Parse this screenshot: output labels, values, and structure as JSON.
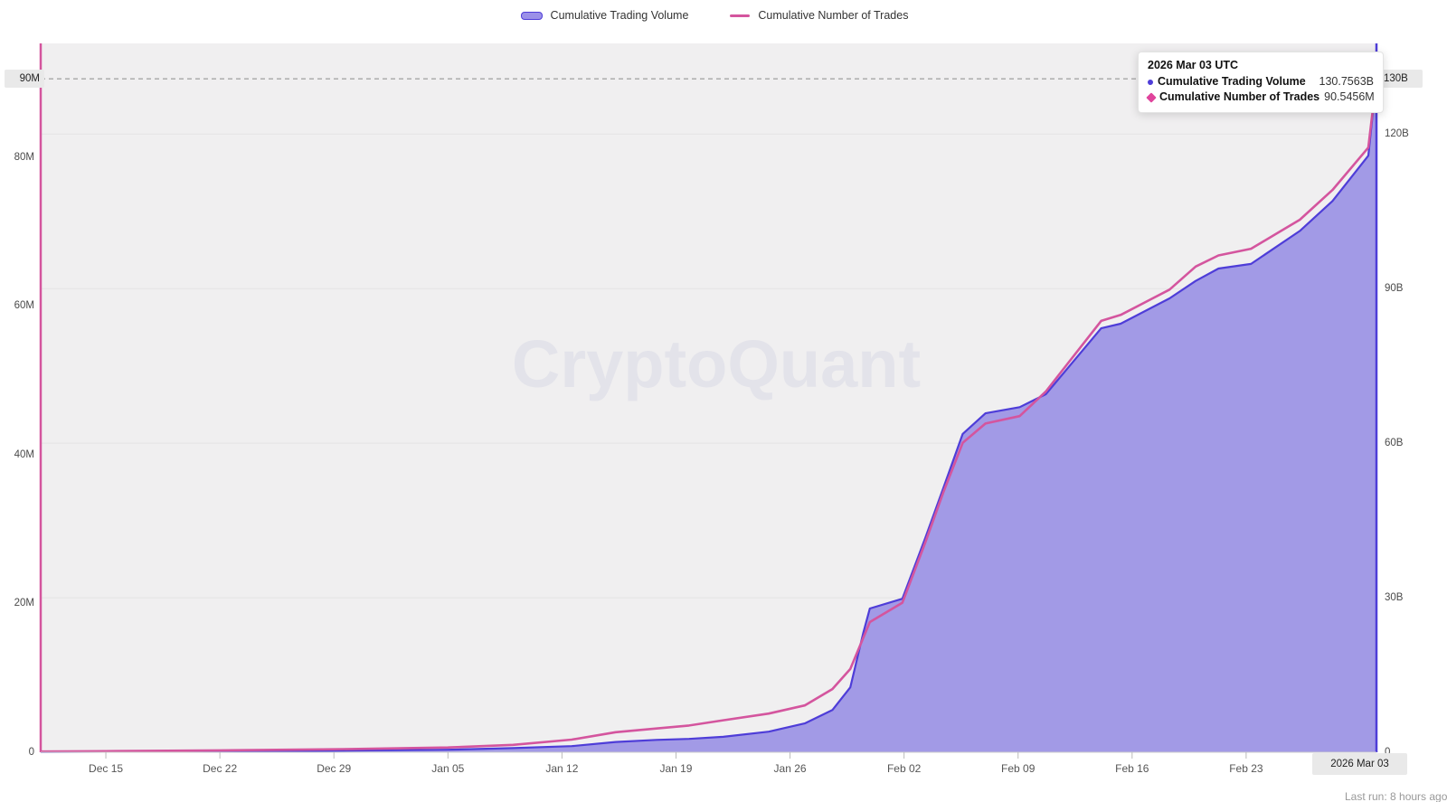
{
  "watermark": {
    "text": "CryptoQuant"
  },
  "colors": {
    "volume_line": "#4e3dd8",
    "volume_area": "#a29ae6",
    "volume_swatch_fill": "#9b90e8",
    "trades_line": "#d4559e",
    "trades_marker": "#e0449c",
    "plot_bg": "#f0eff0",
    "grid": "#e4e4e4",
    "axis_bottom": "#cfcfcf",
    "tick": "#bbbbbb",
    "crosshair": "#8a8a8a",
    "watermark": "#e3e3ea"
  },
  "legend": {
    "items": [
      {
        "label": "Cumulative Trading Volume",
        "type": "area"
      },
      {
        "label": "Cumulative Number of Trades",
        "type": "line"
      }
    ]
  },
  "tooltip": {
    "title": "2026 Mar 03 UTC",
    "rows": [
      {
        "marker": "dot",
        "label": "Cumulative Trading Volume",
        "value": "130.7563B"
      },
      {
        "marker": "diamond",
        "label": "Cumulative Number of Trades",
        "value": "90.5456M"
      }
    ]
  },
  "footer": {
    "last_run": "Last run: 8 hours ago"
  },
  "chart_data": {
    "type": "area",
    "title": "",
    "grid": "horizontal-only",
    "legend_position": "top-center",
    "x_axis": {
      "unit": "days since 2025-12-11",
      "range": [
        0,
        82
      ],
      "ticks": [
        {
          "day": 4,
          "label": "Dec 15"
        },
        {
          "day": 11,
          "label": "Dec 22"
        },
        {
          "day": 18,
          "label": "Dec 29"
        },
        {
          "day": 25,
          "label": "Jan 05"
        },
        {
          "day": 32,
          "label": "Jan 12"
        },
        {
          "day": 39,
          "label": "Jan 19"
        },
        {
          "day": 46,
          "label": "Jan 26"
        },
        {
          "day": 53,
          "label": "Feb 02"
        },
        {
          "day": 60,
          "label": "Feb 09"
        },
        {
          "day": 67,
          "label": "Feb 16"
        },
        {
          "day": 74,
          "label": "Feb 23"
        }
      ],
      "crosshair": {
        "day": 82,
        "label": "2026 Mar 03"
      }
    },
    "left_axis": {
      "title": "Cumulative Number of Trades",
      "unit": "M",
      "max": 95.3,
      "ticks": [
        {
          "v": 0,
          "label": "0"
        },
        {
          "v": 20,
          "label": "20M"
        },
        {
          "v": 40,
          "label": "40M"
        },
        {
          "v": 60,
          "label": "60M"
        },
        {
          "v": 80,
          "label": "80M"
        }
      ],
      "crosshair": {
        "v": 90.5456,
        "label": "90M"
      }
    },
    "right_axis": {
      "title": "Cumulative Trading Volume",
      "unit": "B",
      "max": 137.6,
      "ticks": [
        {
          "v": 0,
          "label": "0"
        },
        {
          "v": 30,
          "label": "30B"
        },
        {
          "v": 60,
          "label": "60B"
        },
        {
          "v": 90,
          "label": "90B"
        },
        {
          "v": 120,
          "label": "120B"
        }
      ],
      "crosshair": {
        "v": 130.7563,
        "label": "130B"
      }
    },
    "series": [
      {
        "name": "Cumulative Trading Volume",
        "axis": "right",
        "style": "area",
        "last_value": 130.7563,
        "points": [
          [
            0,
            0.05
          ],
          [
            4,
            0.1
          ],
          [
            11,
            0.2
          ],
          [
            18,
            0.3
          ],
          [
            25,
            0.5
          ],
          [
            29,
            0.8
          ],
          [
            32.6,
            1.2
          ],
          [
            35.3,
            2.0
          ],
          [
            37.8,
            2.4
          ],
          [
            39.8,
            2.6
          ],
          [
            41.9,
            3.0
          ],
          [
            44.7,
            4.0
          ],
          [
            46.9,
            5.6
          ],
          [
            48.6,
            8.2
          ],
          [
            49.7,
            12.6
          ],
          [
            50.5,
            23.2
          ],
          [
            50.9,
            27.9
          ],
          [
            52.9,
            29.8
          ],
          [
            54.3,
            41.6
          ],
          [
            55.4,
            51.2
          ],
          [
            56.6,
            61.8
          ],
          [
            58,
            65.8
          ],
          [
            60.1,
            67.0
          ],
          [
            61.7,
            69.5
          ],
          [
            65.1,
            82.3
          ],
          [
            66.3,
            83.2
          ],
          [
            69.3,
            88.1
          ],
          [
            70.9,
            91.5
          ],
          [
            72.3,
            93.9
          ],
          [
            74.3,
            94.8
          ],
          [
            77.3,
            101.2
          ],
          [
            79.3,
            107.0
          ],
          [
            81.5,
            115.8
          ],
          [
            82,
            130.7563
          ]
        ]
      },
      {
        "name": "Cumulative Number of Trades",
        "axis": "left",
        "style": "line",
        "last_value": 90.5456,
        "points": [
          [
            0,
            0.1
          ],
          [
            4,
            0.15
          ],
          [
            11,
            0.25
          ],
          [
            18,
            0.4
          ],
          [
            25,
            0.65
          ],
          [
            29,
            1.0
          ],
          [
            32.6,
            1.7
          ],
          [
            35.3,
            2.7
          ],
          [
            37.8,
            3.2
          ],
          [
            39.8,
            3.6
          ],
          [
            41.9,
            4.3
          ],
          [
            44.7,
            5.2
          ],
          [
            46.9,
            6.3
          ],
          [
            48.6,
            8.5
          ],
          [
            49.7,
            11.2
          ],
          [
            50.9,
            17.5
          ],
          [
            52.9,
            20.1
          ],
          [
            54.3,
            28.2
          ],
          [
            55.4,
            34.9
          ],
          [
            56.6,
            41.6
          ],
          [
            58,
            44.2
          ],
          [
            60.1,
            45.2
          ],
          [
            61.7,
            48.5
          ],
          [
            65.1,
            58.0
          ],
          [
            66.3,
            58.8
          ],
          [
            69.3,
            62.2
          ],
          [
            70.9,
            65.3
          ],
          [
            72.3,
            66.8
          ],
          [
            74.3,
            67.7
          ],
          [
            77.3,
            71.6
          ],
          [
            79.3,
            75.6
          ],
          [
            81.5,
            81.3
          ],
          [
            82,
            90.5456
          ]
        ]
      }
    ]
  }
}
